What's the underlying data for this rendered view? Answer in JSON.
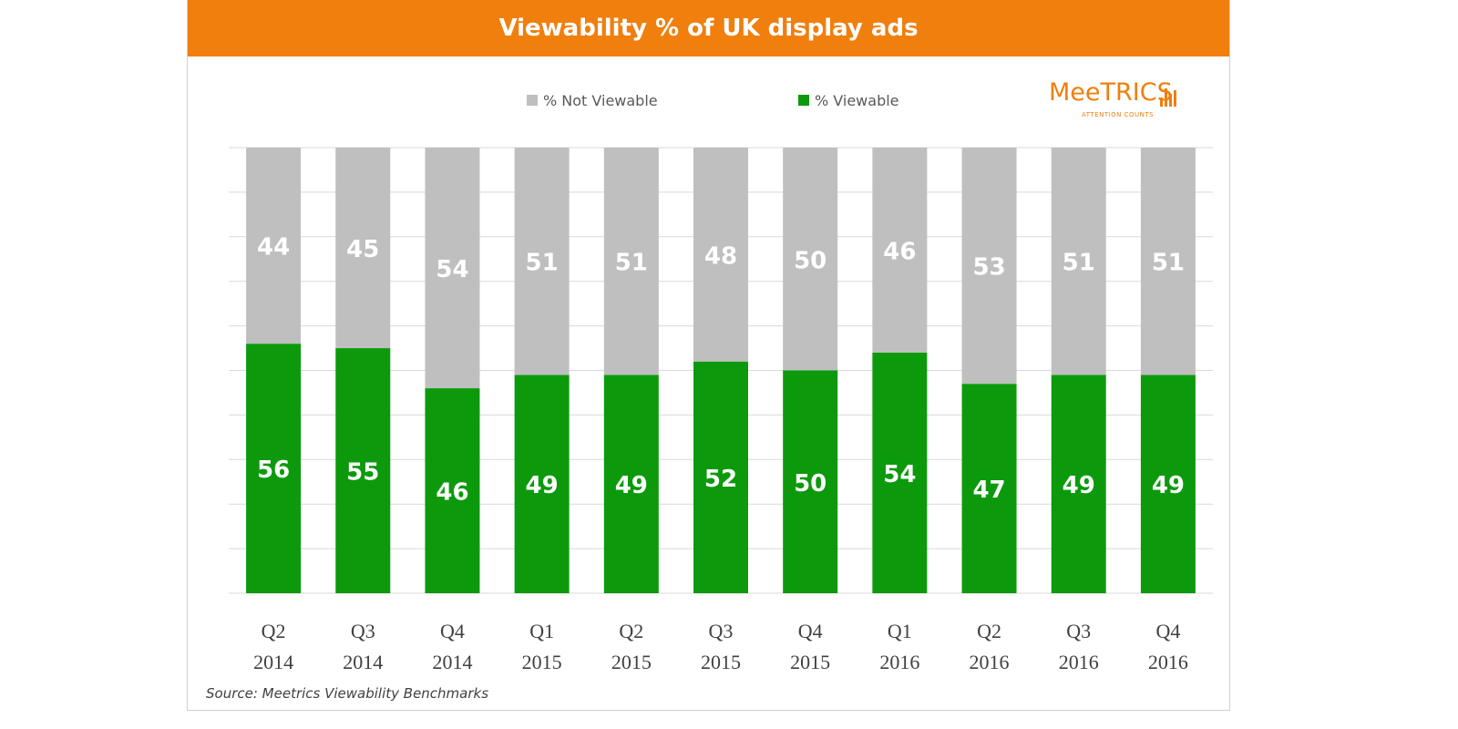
{
  "title": "Viewability % of UK display ads",
  "legend": {
    "not_viewable": "% Not Viewable",
    "viewable": "% Viewable"
  },
  "logo": {
    "name": "MeeTRICS",
    "tagline": "ATTENTION COUNTS"
  },
  "source": "Source: Meetrics Viewability Benchmarks",
  "colors": {
    "title_bar": "#f07f0d",
    "viewable": "#0c9a0c",
    "not_viewable": "#bfbfbf",
    "grid": "#d9d9d9"
  },
  "chart_data": {
    "type": "bar",
    "stacked": true,
    "categories": [
      [
        "Q2",
        "2014"
      ],
      [
        "Q3",
        "2014"
      ],
      [
        "Q4",
        "2014"
      ],
      [
        "Q1",
        "2015"
      ],
      [
        "Q2",
        "2015"
      ],
      [
        "Q3",
        "2015"
      ],
      [
        "Q4",
        "2015"
      ],
      [
        "Q1",
        "2016"
      ],
      [
        "Q2",
        "2016"
      ],
      [
        "Q3",
        "2016"
      ],
      [
        "Q4",
        "2016"
      ]
    ],
    "series": [
      {
        "name": "% Viewable",
        "values": [
          56,
          55,
          46,
          49,
          49,
          52,
          50,
          54,
          47,
          49,
          49
        ]
      },
      {
        "name": "% Not Viewable",
        "values": [
          44,
          45,
          54,
          51,
          51,
          48,
          50,
          46,
          53,
          51,
          51
        ]
      }
    ],
    "ylim": [
      0,
      100
    ],
    "grid": true,
    "legend_position": "top"
  }
}
